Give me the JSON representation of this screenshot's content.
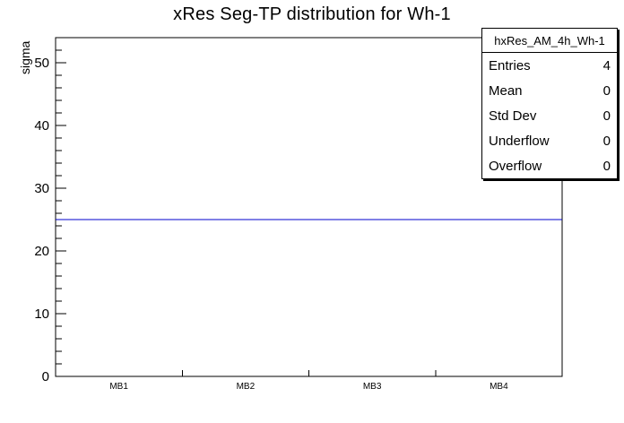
{
  "title": "xRes Seg-TP distribution for Wh-1",
  "y_axis_title": "sigma",
  "stats": {
    "title": "hxRes_AM_4h_Wh-1",
    "rows": [
      {
        "label": "Entries",
        "value": "4"
      },
      {
        "label": "Mean",
        "value": "0"
      },
      {
        "label": "Std Dev",
        "value": "0"
      },
      {
        "label": "Underflow",
        "value": "0"
      },
      {
        "label": "Overflow",
        "value": "0"
      }
    ]
  },
  "chart_data": {
    "type": "line",
    "title": "xRes Seg-TP distribution for Wh-1",
    "categories": [
      "MB1",
      "MB2",
      "MB3",
      "MB4"
    ],
    "values": [
      25,
      25,
      25,
      25
    ],
    "xlabel": "",
    "ylabel": "sigma",
    "ylim": [
      0,
      54
    ],
    "yticks": [
      0,
      10,
      20,
      30,
      40,
      50
    ],
    "ytick_minor_step": 2,
    "grid": false,
    "legend": "none",
    "line_color": "#0000cc",
    "frame_color": "#000000",
    "background_color": "#ffffff"
  }
}
